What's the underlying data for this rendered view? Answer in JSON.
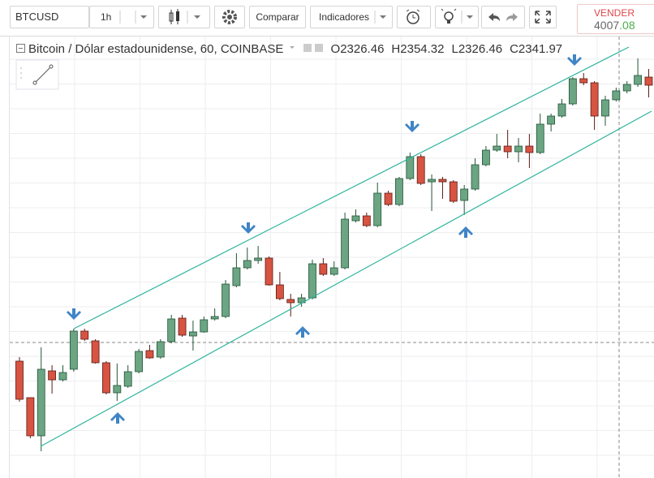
{
  "toolbar": {
    "symbol": "BTCUSD",
    "interval": "1h",
    "compare": "Comparar",
    "indicators": "Indicadores"
  },
  "sell": {
    "label": "VENDER",
    "price_main": "4007",
    "price_fraction": ".08"
  },
  "legend": {
    "title": "Bitcoin / Dólar estadounidense, 60, COINBASE",
    "ohlc": [
      {
        "label": "O",
        "value": 2326.46
      },
      {
        "label": "H",
        "value": 2354.32
      },
      {
        "label": "L",
        "value": 2326.46
      },
      {
        "label": "C",
        "value": 2341.97
      }
    ]
  },
  "chart_data": {
    "type": "candlestick",
    "up_color": "#6ba583",
    "down_color": "#d75442",
    "ylim": [
      1896,
      2440
    ],
    "open": [
      2040,
      1995,
      1948,
      2028,
      2017,
      2030,
      2077,
      2065,
      2038,
      2001,
      2009,
      2027,
      2053,
      2045,
      2064,
      2093,
      2071,
      2076,
      2092,
      2095,
      2133,
      2155,
      2164,
      2167,
      2134,
      2116,
      2112,
      2118,
      2160,
      2147,
      2155,
      2213,
      2219,
      2207,
      2247,
      2233,
      2265,
      2292,
      2261,
      2264,
      2261,
      2238,
      2252,
      2282,
      2300,
      2305,
      2298,
      2305,
      2297,
      2332,
      2342,
      2357,
      2388,
      2383,
      2342,
      2362,
      2373,
      2381,
      2390
    ],
    "high": [
      2045,
      1995,
      2057,
      2035,
      2035,
      2080,
      2080,
      2067,
      2040,
      2037,
      2035,
      2055,
      2060,
      2067,
      2097,
      2097,
      2090,
      2095,
      2105,
      2140,
      2173,
      2180,
      2182,
      2169,
      2150,
      2123,
      2123,
      2165,
      2167,
      2163,
      2223,
      2227,
      2223,
      2260,
      2250,
      2267,
      2297,
      2295,
      2270,
      2267,
      2263,
      2257,
      2290,
      2305,
      2320,
      2325,
      2315,
      2320,
      2345,
      2345,
      2363,
      2390,
      2395,
      2385,
      2367,
      2377,
      2385,
      2413,
      2400
    ],
    "low": [
      1990,
      1945,
      1929,
      2000,
      2015,
      2027,
      2065,
      2037,
      1999,
      1991,
      2007,
      2025,
      2043,
      2043,
      2062,
      2070,
      2053,
      2075,
      2090,
      2093,
      2131,
      2153,
      2160,
      2133,
      2115,
      2095,
      2107,
      2116,
      2145,
      2145,
      2153,
      2211,
      2205,
      2205,
      2231,
      2231,
      2263,
      2257,
      2225,
      2240,
      2235,
      2220,
      2250,
      2280,
      2298,
      2290,
      2285,
      2278,
      2295,
      2323,
      2340,
      2355,
      2380,
      2325,
      2330,
      2360,
      2370,
      2378,
      2365
    ],
    "close": [
      1993,
      1948,
      2030,
      2017,
      2026,
      2077,
      2067,
      2038,
      2001,
      2010,
      2027,
      2052,
      2044,
      2064,
      2092,
      2072,
      2076,
      2091,
      2095,
      2135,
      2155,
      2164,
      2167,
      2134,
      2117,
      2112,
      2118,
      2160,
      2147,
      2155,
      2215,
      2219,
      2207,
      2247,
      2233,
      2265,
      2292,
      2259,
      2264,
      2261,
      2237,
      2252,
      2282,
      2300,
      2305,
      2298,
      2305,
      2297,
      2332,
      2342,
      2357,
      2388,
      2383,
      2342,
      2362,
      2373,
      2381,
      2392,
      2380
    ]
  }
}
